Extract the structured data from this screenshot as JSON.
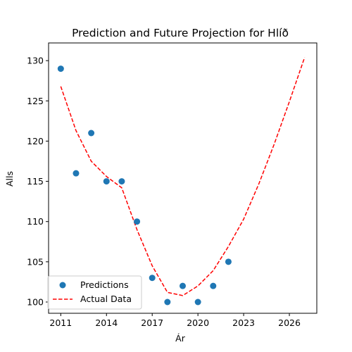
{
  "chart_data": {
    "type": "scatter",
    "title": "Prediction and Future Projection for Hlíð",
    "xlabel": "Ár",
    "ylabel": "Alls",
    "xlim": [
      2010.2,
      2027.8
    ],
    "ylim": [
      98.6,
      132.2
    ],
    "x_ticks": [
      2011,
      2014,
      2017,
      2020,
      2023,
      2026
    ],
    "y_ticks": [
      100,
      105,
      110,
      115,
      120,
      125,
      130
    ],
    "grid": false,
    "legend_position": "lower-left",
    "series": [
      {
        "name": "Predictions",
        "kind": "scatter",
        "color": "#1f77b4",
        "points": [
          {
            "x": 2011,
            "y": 129
          },
          {
            "x": 2012,
            "y": 116
          },
          {
            "x": 2013,
            "y": 121
          },
          {
            "x": 2014,
            "y": 115
          },
          {
            "x": 2015,
            "y": 115
          },
          {
            "x": 2016,
            "y": 110
          },
          {
            "x": 2017,
            "y": 103
          },
          {
            "x": 2018,
            "y": 100
          },
          {
            "x": 2019,
            "y": 102
          },
          {
            "x": 2020,
            "y": 100
          },
          {
            "x": 2021,
            "y": 102
          },
          {
            "x": 2022,
            "y": 105
          }
        ]
      },
      {
        "name": "Actual Data",
        "kind": "line",
        "style": "dashed",
        "color": "#ff0000",
        "points": [
          {
            "x": 2011,
            "y": 126.8
          },
          {
            "x": 2012,
            "y": 121.3
          },
          {
            "x": 2013,
            "y": 117.5
          },
          {
            "x": 2014,
            "y": 115.6
          },
          {
            "x": 2015,
            "y": 114.2
          },
          {
            "x": 2016,
            "y": 109.0
          },
          {
            "x": 2017,
            "y": 104.5
          },
          {
            "x": 2018,
            "y": 101.2
          },
          {
            "x": 2019,
            "y": 100.8
          },
          {
            "x": 2020,
            "y": 102.0
          },
          {
            "x": 2021,
            "y": 103.9
          },
          {
            "x": 2022,
            "y": 106.9
          },
          {
            "x": 2023,
            "y": 110.3
          },
          {
            "x": 2024,
            "y": 114.7
          },
          {
            "x": 2025,
            "y": 119.6
          },
          {
            "x": 2026,
            "y": 124.9
          },
          {
            "x": 2027,
            "y": 130.4
          }
        ]
      }
    ]
  }
}
